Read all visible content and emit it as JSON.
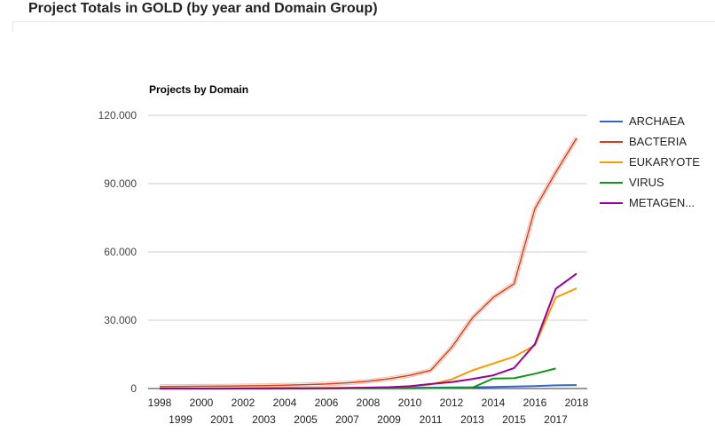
{
  "page": {
    "title": "Project Totals in GOLD (by year and Domain Group)"
  },
  "chart_data": {
    "type": "line",
    "title": "Projects by Domain",
    "xlabel": "",
    "ylabel": "",
    "ylim": [
      0,
      120000
    ],
    "y_ticks": [
      0,
      30000,
      60000,
      90000,
      120000
    ],
    "y_tick_labels": [
      "0",
      "30.000",
      "60.000",
      "90.000",
      "120.000"
    ],
    "x": [
      "1998",
      "1999",
      "2000",
      "2001",
      "2002",
      "2003",
      "2004",
      "2005",
      "2006",
      "2007",
      "2008",
      "2009",
      "2010",
      "2011",
      "2012",
      "2013",
      "2014",
      "2015",
      "2016",
      "2017",
      "2018"
    ],
    "grid": true,
    "legend_position": "right",
    "series": [
      {
        "name": "ARCHAEA",
        "color": "#3366cc",
        "values": [
          20,
          30,
          40,
          60,
          80,
          100,
          120,
          150,
          180,
          220,
          260,
          300,
          350,
          400,
          450,
          550,
          700,
          900,
          1100,
          1400,
          1500
        ]
      },
      {
        "name": "BACTERIA",
        "color": "#dc3912",
        "values": [
          900,
          950,
          1000,
          1050,
          1150,
          1300,
          1450,
          1700,
          2000,
          2500,
          3200,
          4300,
          5800,
          8000,
          18000,
          31000,
          40000,
          46000,
          79000,
          95000,
          110000
        ]
      },
      {
        "name": "EUKARYOTE",
        "color": "#ff9900",
        "values": [
          20,
          30,
          40,
          60,
          80,
          100,
          150,
          200,
          260,
          330,
          420,
          550,
          900,
          1800,
          4000,
          8000,
          11000,
          14000,
          19000,
          40000,
          44000
        ]
      },
      {
        "name": "VIRUS",
        "color": "#109618",
        "values": [
          0,
          0,
          0,
          10,
          10,
          20,
          20,
          30,
          40,
          60,
          80,
          100,
          130,
          180,
          250,
          400,
          4400,
          4500,
          6500,
          8800,
          null
        ]
      },
      {
        "name": "METAGEN...",
        "color": "#990099",
        "values": [
          0,
          0,
          0,
          10,
          20,
          40,
          60,
          90,
          150,
          250,
          400,
          600,
          1000,
          2000,
          2800,
          4200,
          5800,
          9000,
          19500,
          43800,
          50500
        ]
      }
    ]
  }
}
